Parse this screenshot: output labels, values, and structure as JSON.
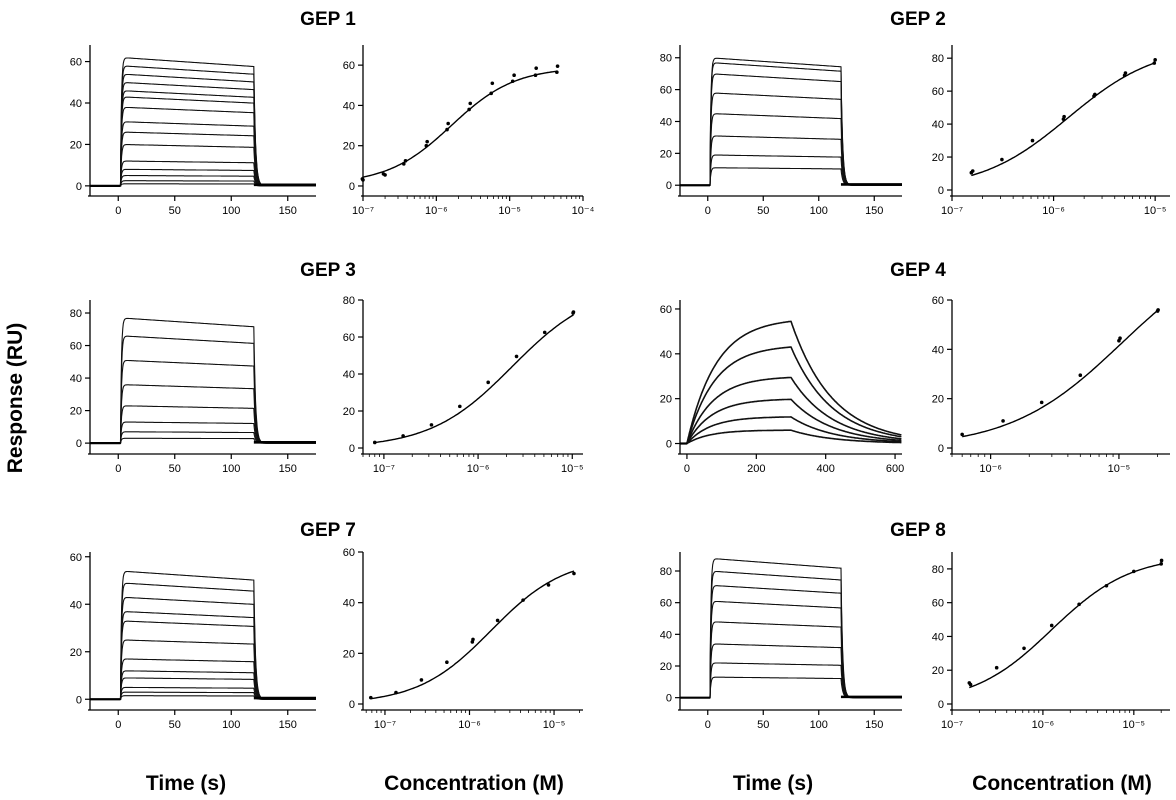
{
  "figure": {
    "y_axis_label": "Response (RU)",
    "x_axis_labels": [
      "Time (s)",
      "Concentration (M)",
      "Time (s)",
      "Concentration (M)"
    ]
  },
  "chart_data": [
    {
      "panel": "GEP 1",
      "title": "GEP 1",
      "sensorgram": {
        "type": "line",
        "xlim": [
          -25,
          175
        ],
        "ylim": [
          -2,
          68
        ],
        "xticks": [
          0,
          50,
          100,
          150
        ],
        "yticks": [
          0,
          20,
          40,
          60
        ],
        "injection_start": 2,
        "injection_end": 120,
        "dissociation": "fast",
        "plateaus": [
          62,
          58,
          54,
          50,
          46,
          43,
          38,
          31,
          26,
          20,
          12,
          8,
          5,
          2.5,
          1
        ]
      },
      "dose_response": {
        "type": "scatter",
        "x_scale": "log",
        "xlim": [
          1e-07,
          0.0001
        ],
        "ylim": [
          -2,
          70
        ],
        "xtick_exponents": [
          -7,
          -6,
          -5,
          -4
        ],
        "yticks": [
          0,
          20,
          40,
          60
        ],
        "fit": {
          "bottom": 1,
          "top": 59,
          "ec50": 1.6e-06,
          "hill": 1
        },
        "points": [
          {
            "x": 9.8e-08,
            "y": 3.5
          },
          {
            "x": 1e-07,
            "y": 3.0
          },
          {
            "x": 1.9e-07,
            "y": 6.0
          },
          {
            "x": 2e-07,
            "y": 5.5
          },
          {
            "x": 3.6e-07,
            "y": 11.0
          },
          {
            "x": 3.8e-07,
            "y": 12.5
          },
          {
            "x": 7.3e-07,
            "y": 20.0
          },
          {
            "x": 7.5e-07,
            "y": 22.0
          },
          {
            "x": 1.4e-06,
            "y": 28.0
          },
          {
            "x": 1.45e-06,
            "y": 31.0
          },
          {
            "x": 2.8e-06,
            "y": 38.0
          },
          {
            "x": 2.9e-06,
            "y": 41.0
          },
          {
            "x": 5.6e-06,
            "y": 46.0
          },
          {
            "x": 5.8e-06,
            "y": 51.0
          },
          {
            "x": 1.1e-05,
            "y": 52.0
          },
          {
            "x": 1.15e-05,
            "y": 55.0
          },
          {
            "x": 2.25e-05,
            "y": 55.0
          },
          {
            "x": 2.3e-05,
            "y": 58.5
          },
          {
            "x": 4.4e-05,
            "y": 56.5
          },
          {
            "x": 4.5e-05,
            "y": 59.5
          }
        ]
      }
    },
    {
      "panel": "GEP 2",
      "title": "GEP 2",
      "sensorgram": {
        "type": "line",
        "xlim": [
          -25,
          175
        ],
        "ylim": [
          -3,
          88
        ],
        "xticks": [
          0,
          50,
          100,
          150
        ],
        "yticks": [
          0,
          20,
          40,
          60,
          80
        ],
        "injection_start": 2,
        "injection_end": 120,
        "dissociation": "fast",
        "plateaus": [
          80,
          77,
          70,
          58,
          45,
          31,
          19,
          11
        ]
      },
      "dose_response": {
        "type": "scatter",
        "x_scale": "log",
        "xlim": [
          1e-07,
          1.4e-05
        ],
        "ylim": [
          0,
          88
        ],
        "xtick_exponents": [
          -7,
          -6,
          -5
        ],
        "yticks": [
          0,
          20,
          40,
          60,
          80
        ],
        "fit": {
          "bottom": 0,
          "top": 88,
          "ec50": 1.4e-06,
          "hill": 1
        },
        "points": [
          {
            "x": 1.55e-07,
            "y": 10.5
          },
          {
            "x": 1.6e-07,
            "y": 11.5
          },
          {
            "x": 3.1e-07,
            "y": 18.5
          },
          {
            "x": 6.2e-07,
            "y": 30.0
          },
          {
            "x": 1.25e-06,
            "y": 43.0
          },
          {
            "x": 1.27e-06,
            "y": 44.5
          },
          {
            "x": 2.5e-06,
            "y": 57.0
          },
          {
            "x": 2.55e-06,
            "y": 58.0
          },
          {
            "x": 5e-06,
            "y": 69.5
          },
          {
            "x": 5.1e-06,
            "y": 71.0
          },
          {
            "x": 9.8e-06,
            "y": 77.0
          },
          {
            "x": 1e-05,
            "y": 79.0
          }
        ]
      }
    },
    {
      "panel": "GEP 3",
      "title": "GEP 3",
      "sensorgram": {
        "type": "line",
        "xlim": [
          -25,
          175
        ],
        "ylim": [
          -3,
          88
        ],
        "xticks": [
          0,
          50,
          100,
          150
        ],
        "yticks": [
          0,
          20,
          40,
          60,
          80
        ],
        "injection_start": 2,
        "injection_end": 120,
        "dissociation": "fast",
        "plateaus": [
          77,
          66,
          51,
          36,
          23,
          13,
          7,
          3
        ]
      },
      "dose_response": {
        "type": "scatter",
        "x_scale": "log",
        "xlim": [
          6e-08,
          1.3e-05
        ],
        "ylim": [
          0,
          80
        ],
        "xtick_exponents": [
          -7,
          -6,
          -5
        ],
        "yticks": [
          0,
          20,
          40,
          60,
          80
        ],
        "fit": {
          "bottom": 0,
          "top": 88,
          "ec50": 2.3e-06,
          "hill": 1
        },
        "points": [
          {
            "x": 8e-08,
            "y": 3.0
          },
          {
            "x": 1.6e-07,
            "y": 6.5
          },
          {
            "x": 3.2e-07,
            "y": 12.5
          },
          {
            "x": 6.4e-07,
            "y": 22.5
          },
          {
            "x": 1.28e-06,
            "y": 35.5
          },
          {
            "x": 2.56e-06,
            "y": 49.5
          },
          {
            "x": 5.1e-06,
            "y": 62.5
          },
          {
            "x": 1.02e-05,
            "y": 73.0
          },
          {
            "x": 1.03e-05,
            "y": 73.5
          }
        ]
      }
    },
    {
      "panel": "GEP 4",
      "title": "GEP 4",
      "sensorgram": {
        "type": "line",
        "xlim": [
          -20,
          620
        ],
        "ylim": [
          -2,
          64
        ],
        "xticks": [
          0,
          200,
          400,
          600
        ],
        "yticks": [
          0,
          20,
          40,
          60
        ],
        "injection_start": 0,
        "injection_end": 300,
        "dissociation": "slow",
        "plateaus": [
          56,
          44,
          30,
          20,
          12,
          6
        ]
      },
      "dose_response": {
        "type": "scatter",
        "x_scale": "log",
        "xlim": [
          5e-07,
          2.5e-05
        ],
        "ylim": [
          0,
          60
        ],
        "xtick_exponents": [
          -6,
          -5
        ],
        "yticks": [
          0,
          20,
          40,
          60
        ],
        "fit": {
          "bottom": 0,
          "top": 85,
          "ec50": 1.05e-05,
          "hill": 1
        },
        "points": [
          {
            "x": 6e-07,
            "y": 5.5
          },
          {
            "x": 1.25e-06,
            "y": 11.0
          },
          {
            "x": 2.5e-06,
            "y": 18.5
          },
          {
            "x": 5e-06,
            "y": 29.5
          },
          {
            "x": 1e-05,
            "y": 43.5
          },
          {
            "x": 1.02e-05,
            "y": 44.5
          },
          {
            "x": 2e-05,
            "y": 55.5
          },
          {
            "x": 2.02e-05,
            "y": 56.0
          }
        ]
      }
    },
    {
      "panel": "GEP 7",
      "title": "GEP 7",
      "sensorgram": {
        "type": "line",
        "xlim": [
          -25,
          175
        ],
        "ylim": [
          -2,
          62
        ],
        "xticks": [
          0,
          50,
          100,
          150
        ],
        "yticks": [
          0,
          20,
          40,
          60
        ],
        "injection_start": 2,
        "injection_end": 120,
        "dissociation": "fast",
        "plateaus": [
          54,
          49,
          43,
          37,
          33,
          25,
          17,
          12,
          9,
          5,
          3,
          1.5
        ]
      },
      "dose_response": {
        "type": "scatter",
        "x_scale": "log",
        "xlim": [
          5.5e-08,
          2.2e-05
        ],
        "ylim": [
          0,
          60
        ],
        "xtick_exponents": [
          -7,
          -6,
          -5
        ],
        "yticks": [
          0,
          20,
          40,
          60
        ],
        "fit": {
          "bottom": 0,
          "top": 58,
          "ec50": 1.8e-06,
          "hill": 1
        },
        "points": [
          {
            "x": 6.8e-08,
            "y": 2.5
          },
          {
            "x": 1.35e-07,
            "y": 4.5
          },
          {
            "x": 2.7e-07,
            "y": 9.5
          },
          {
            "x": 5.4e-07,
            "y": 16.5
          },
          {
            "x": 1.08e-06,
            "y": 24.5
          },
          {
            "x": 1.1e-06,
            "y": 25.5
          },
          {
            "x": 2.15e-06,
            "y": 33.0
          },
          {
            "x": 4.3e-06,
            "y": 41.0
          },
          {
            "x": 8.6e-06,
            "y": 47.0
          },
          {
            "x": 1.72e-05,
            "y": 51.5
          }
        ]
      }
    },
    {
      "panel": "GEP 8",
      "title": "GEP 8",
      "sensorgram": {
        "type": "line",
        "xlim": [
          -25,
          175
        ],
        "ylim": [
          -4,
          92
        ],
        "xticks": [
          0,
          50,
          100,
          150
        ],
        "yticks": [
          0,
          20,
          40,
          60,
          80
        ],
        "injection_start": 2,
        "injection_end": 120,
        "dissociation": "fast",
        "plateaus": [
          88,
          80,
          71,
          61,
          48,
          34,
          22,
          13
        ]
      },
      "dose_response": {
        "type": "scatter",
        "x_scale": "log",
        "xlim": [
          1e-07,
          2.5e-05
        ],
        "ylim": [
          0,
          90
        ],
        "xtick_exponents": [
          -7,
          -6,
          -5
        ],
        "yticks": [
          0,
          20,
          40,
          60,
          80
        ],
        "fit": {
          "bottom": 0,
          "top": 88,
          "ec50": 1.25e-06,
          "hill": 1
        },
        "points": [
          {
            "x": 1.55e-07,
            "y": 12.5
          },
          {
            "x": 1.6e-07,
            "y": 11.5
          },
          {
            "x": 3.1e-07,
            "y": 21.5
          },
          {
            "x": 6.2e-07,
            "y": 33.0
          },
          {
            "x": 1.25e-06,
            "y": 46.5
          },
          {
            "x": 2.5e-06,
            "y": 59.0
          },
          {
            "x": 5e-06,
            "y": 70.0
          },
          {
            "x": 1e-05,
            "y": 78.5
          },
          {
            "x": 2e-05,
            "y": 83.0
          },
          {
            "x": 2.02e-05,
            "y": 85.0
          }
        ]
      }
    }
  ]
}
